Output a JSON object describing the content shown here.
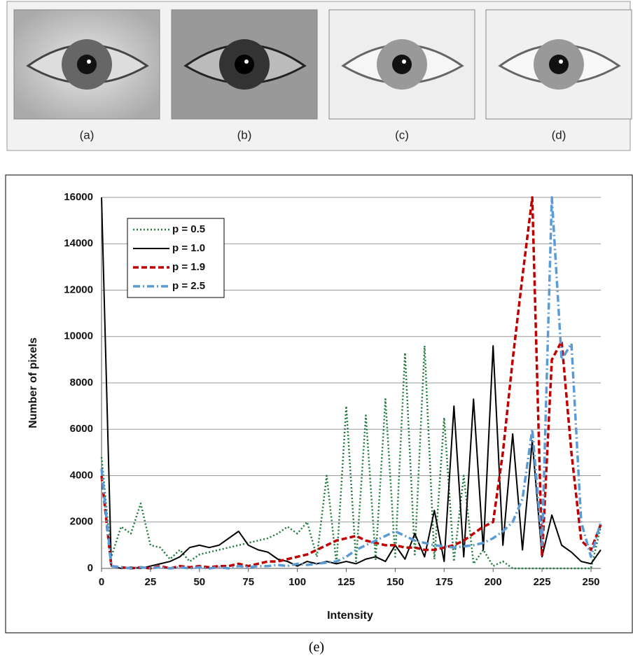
{
  "panel_labels": [
    "(a)",
    "(b)",
    "(c)",
    "(d)"
  ],
  "caption": "(e)",
  "chart_data": {
    "type": "line",
    "x_label": "Intensity",
    "y_label": "Number of pixels",
    "x": [
      0,
      5,
      10,
      15,
      20,
      25,
      30,
      35,
      40,
      45,
      50,
      55,
      60,
      65,
      70,
      75,
      80,
      85,
      90,
      95,
      100,
      105,
      110,
      115,
      120,
      125,
      130,
      135,
      140,
      145,
      150,
      155,
      160,
      165,
      170,
      175,
      180,
      185,
      190,
      195,
      200,
      205,
      210,
      215,
      220,
      225,
      230,
      235,
      240,
      245,
      250,
      255
    ],
    "series": [
      {
        "name": "p = 0.5",
        "color": "#1e7b3a",
        "style": "dotted",
        "values": [
          4800,
          500,
          1800,
          1500,
          2800,
          1000,
          900,
          400,
          800,
          300,
          600,
          700,
          800,
          900,
          1000,
          1100,
          1200,
          1300,
          1500,
          1800,
          1500,
          2000,
          500,
          4000,
          200,
          7000,
          300,
          6600,
          400,
          7300,
          500,
          9300,
          600,
          9600,
          400,
          6500,
          300,
          4000,
          200,
          800,
          100,
          300,
          0,
          0,
          0,
          0,
          0,
          0,
          0,
          0,
          0,
          1800
        ]
      },
      {
        "name": "p = 1.0",
        "color": "#000000",
        "style": "solid",
        "values": [
          16000,
          100,
          0,
          50,
          0,
          100,
          200,
          300,
          500,
          900,
          1000,
          900,
          1000,
          1300,
          1600,
          1000,
          800,
          700,
          400,
          300,
          100,
          300,
          200,
          300,
          200,
          300,
          200,
          400,
          500,
          300,
          1000,
          400,
          1500,
          500,
          2500,
          300,
          7000,
          500,
          7300,
          800,
          9600,
          1000,
          5800,
          800,
          5500,
          500,
          2300,
          1000,
          700,
          300,
          200,
          800
        ]
      },
      {
        "name": "p = 1.9",
        "color": "#c00000",
        "style": "dashed",
        "values": [
          4000,
          100,
          50,
          0,
          50,
          0,
          100,
          0,
          100,
          50,
          100,
          50,
          100,
          100,
          200,
          100,
          200,
          300,
          300,
          400,
          500,
          600,
          800,
          1000,
          1200,
          1300,
          1400,
          1200,
          1100,
          1000,
          1000,
          900,
          900,
          800,
          800,
          900,
          1000,
          1200,
          1500,
          1800,
          2000,
          5000,
          9000,
          12600,
          16000,
          500,
          9000,
          9800,
          5000,
          1200,
          800,
          1900
        ]
      },
      {
        "name": "p = 2.5",
        "color": "#5b9bd5",
        "style": "dashdot",
        "values": [
          4300,
          100,
          50,
          0,
          50,
          0,
          50,
          0,
          50,
          0,
          50,
          0,
          50,
          0,
          100,
          50,
          100,
          100,
          150,
          100,
          200,
          150,
          200,
          250,
          300,
          500,
          800,
          1000,
          1200,
          1400,
          1600,
          1400,
          1200,
          1100,
          1000,
          950,
          900,
          950,
          1000,
          1100,
          1300,
          1600,
          2000,
          3000,
          6000,
          1000,
          16000,
          9000,
          9700,
          2000,
          500,
          2000
        ]
      }
    ],
    "xlim": [
      0,
      255
    ],
    "ylim": [
      0,
      16000
    ],
    "xticks": [
      0,
      25,
      50,
      75,
      100,
      125,
      150,
      175,
      200,
      225,
      250
    ],
    "yticks": [
      0,
      2000,
      4000,
      6000,
      8000,
      10000,
      12000,
      14000,
      16000
    ],
    "grid": true,
    "legend": "top-left"
  }
}
